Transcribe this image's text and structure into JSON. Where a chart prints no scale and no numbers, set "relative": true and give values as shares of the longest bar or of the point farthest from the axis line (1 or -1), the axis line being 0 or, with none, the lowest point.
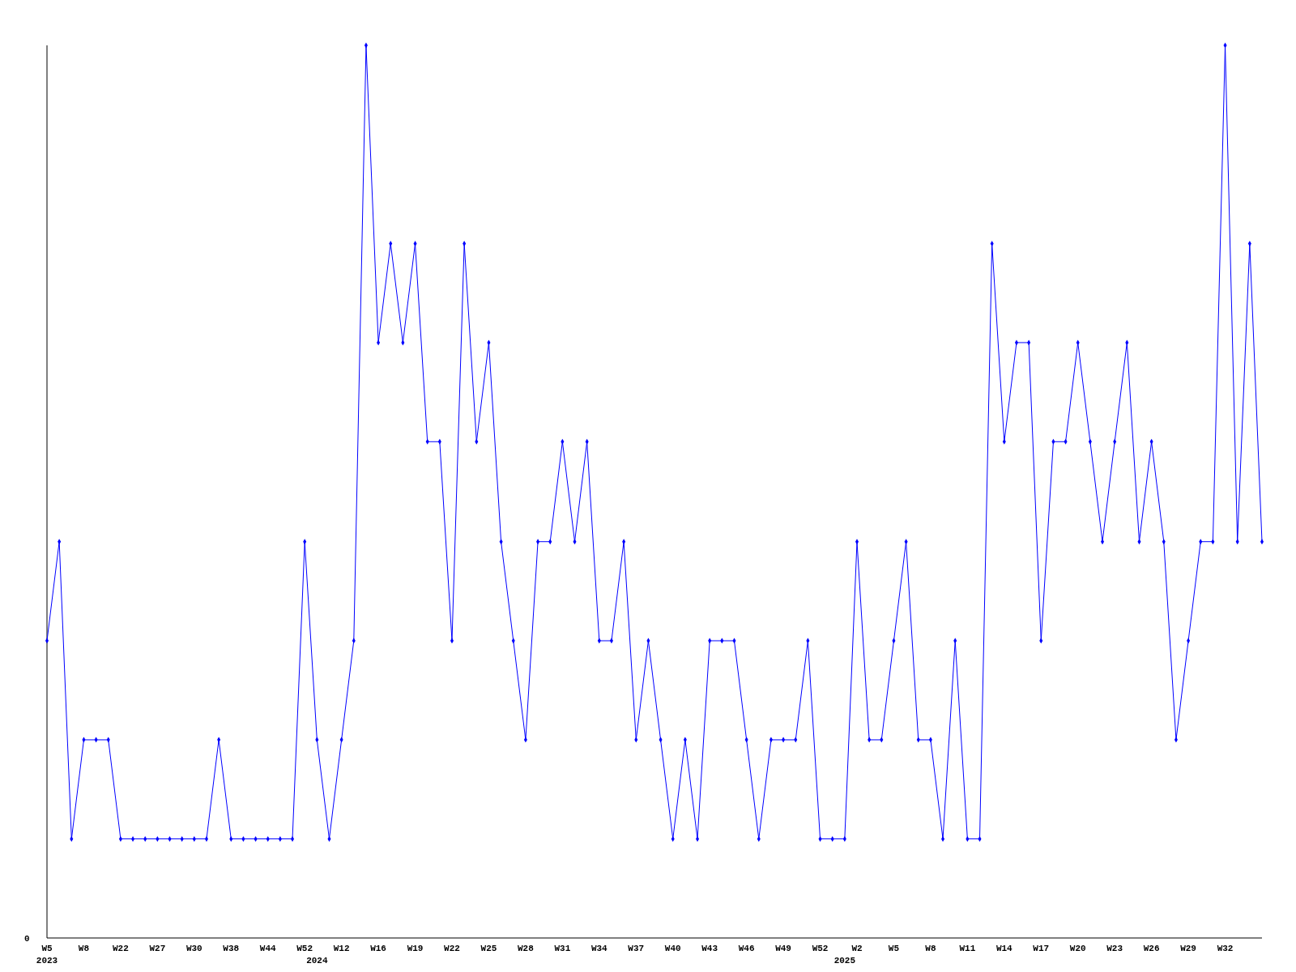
{
  "chart_data": {
    "type": "line",
    "relative": true,
    "marker": "diamond",
    "line_style": "solid",
    "categories": [
      "W5\n2023",
      null,
      null,
      "W8",
      null,
      null,
      "W22",
      null,
      null,
      "W27",
      null,
      null,
      "W30",
      null,
      null,
      "W38",
      null,
      null,
      "W44",
      null,
      null,
      "W52",
      "\n2024",
      null,
      "W12",
      null,
      null,
      "W16",
      null,
      null,
      "W19",
      null,
      null,
      "W22",
      null,
      null,
      "W25",
      null,
      null,
      "W28",
      null,
      null,
      "W31",
      null,
      null,
      "W34",
      null,
      null,
      "W37",
      null,
      null,
      "W40",
      null,
      null,
      "W43",
      null,
      null,
      "W46",
      null,
      null,
      "W49",
      null,
      null,
      "W52",
      null,
      "\n2025",
      "W2",
      null,
      null,
      "W5",
      null,
      null,
      "W8",
      null,
      null,
      "W11",
      null,
      null,
      "W14",
      null,
      null,
      "W17",
      null,
      null,
      "W20",
      null,
      null,
      "W23",
      null,
      null,
      "W26",
      null,
      null,
      "W29",
      null,
      null,
      "W32",
      null,
      null,
      null
    ],
    "series": [
      {
        "color": "#0000ff",
        "values": [
          0.333,
          0.444,
          0.111,
          0.222,
          0.222,
          0.222,
          0.111,
          0.111,
          0.111,
          0.111,
          0.111,
          0.111,
          0.111,
          0.111,
          0.222,
          0.111,
          0.111,
          0.111,
          0.111,
          0.111,
          0.111,
          0.444,
          0.222,
          0.111,
          0.222,
          0.333,
          1,
          0.667,
          0.778,
          0.667,
          0.778,
          0.556,
          0.556,
          0.333,
          0.778,
          0.556,
          0.667,
          0.444,
          0.333,
          0.222,
          0.444,
          0.444,
          0.556,
          0.444,
          0.556,
          0.333,
          0.333,
          0.444,
          0.222,
          0.333,
          0.222,
          0.111,
          0.222,
          0.111,
          0.333,
          0.333,
          0.333,
          0.222,
          0.111,
          0.222,
          0.222,
          0.222,
          0.333,
          0.111,
          0.111,
          0.111,
          0.444,
          0.222,
          0.222,
          0.333,
          0.444,
          0.222,
          0.222,
          0.111,
          0.333,
          0.111,
          0.111,
          0.778,
          0.556,
          0.667,
          0.667,
          0.333,
          0.556,
          0.556,
          0.667,
          0.556,
          0.444,
          0.556,
          0.667,
          0.444,
          0.556,
          0.444,
          0.222,
          0.333,
          0.444,
          0.444,
          1,
          0.444,
          0.778,
          0.444
        ]
      }
    ],
    "annotations": [
      "0"
    ]
  }
}
